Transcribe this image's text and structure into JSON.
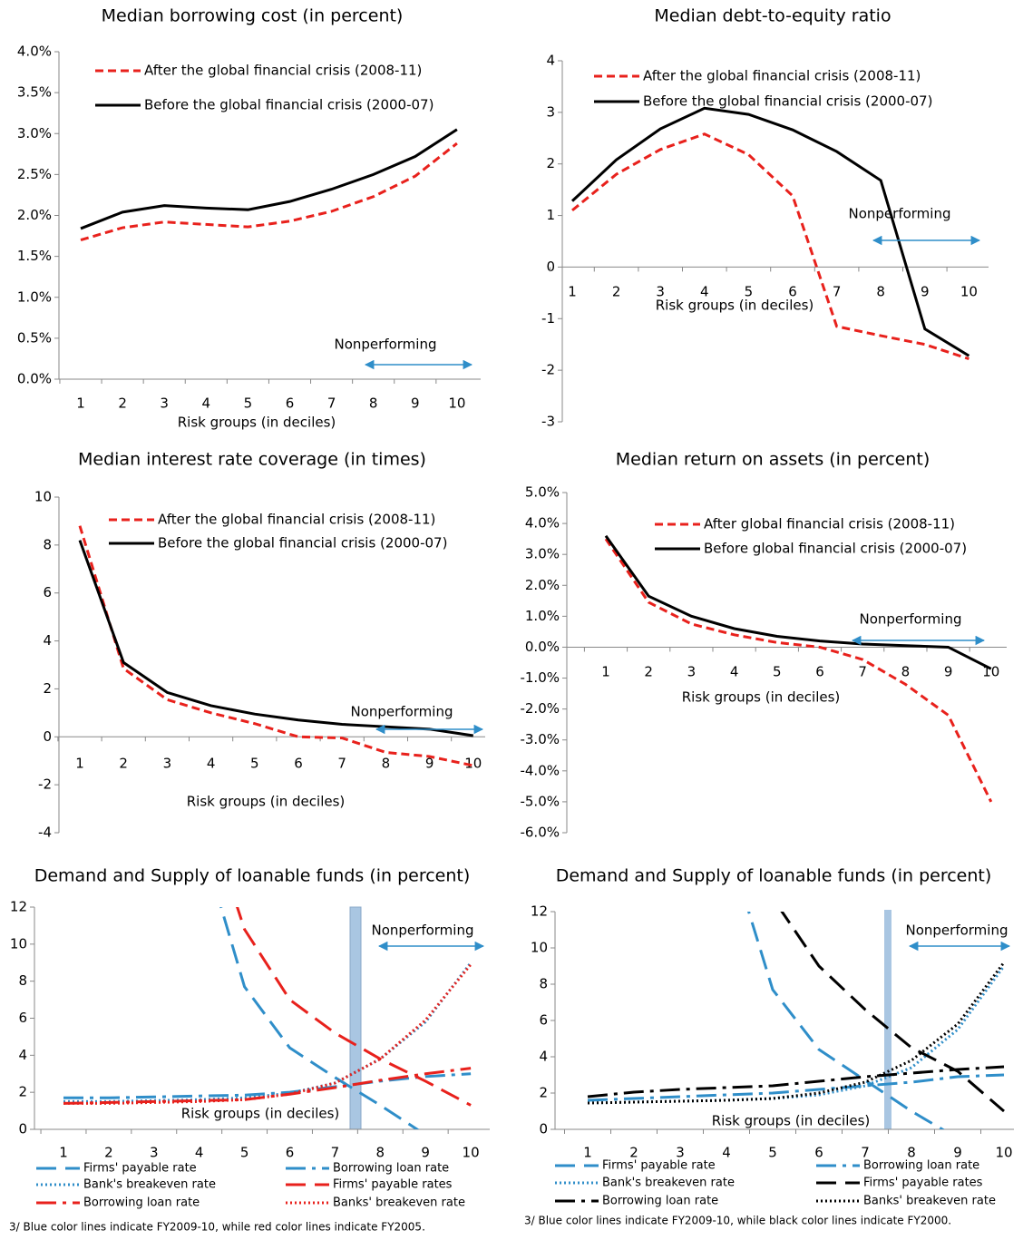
{
  "chart_data": [
    {
      "type": "line",
      "title": "Median borrowing cost (in percent)",
      "x_label": "Risk groups (in deciles)",
      "annotation": "Nonperforming",
      "categories": [
        "1",
        "2",
        "3",
        "4",
        "5",
        "6",
        "7",
        "8",
        "9",
        "10"
      ],
      "ylim": [
        0,
        4
      ],
      "yticks": [
        {
          "value": 0,
          "label": "0.0%"
        },
        {
          "value": 0.5,
          "label": "0.5%"
        },
        {
          "value": 1,
          "label": "1.0%"
        },
        {
          "value": 1.5,
          "label": "1.5%"
        },
        {
          "value": 2,
          "label": "2.0%"
        },
        {
          "value": 2.5,
          "label": "2.5%"
        },
        {
          "value": 3,
          "label": "3.0%"
        },
        {
          "value": 3.5,
          "label": "3.5%"
        },
        {
          "value": 4,
          "label": "4.0%"
        }
      ],
      "series": [
        {
          "name": "After the global financial crisis (2008-11)",
          "color": "#e8211c",
          "dash": "dash",
          "values": [
            1.7,
            1.85,
            1.92,
            1.89,
            1.86,
            1.93,
            2.05,
            2.23,
            2.48,
            2.88
          ]
        },
        {
          "name": "Before the global financial crisis (2000-07)",
          "color": "#000000",
          "dash": "solid",
          "values": [
            1.84,
            2.04,
            2.12,
            2.09,
            2.07,
            2.17,
            2.32,
            2.5,
            2.72,
            3.05
          ]
        }
      ]
    },
    {
      "type": "line",
      "title": "Median debt-to-equity ratio",
      "x_label": "Risk groups (in deciles)",
      "annotation": "Nonperforming",
      "categories": [
        "1",
        "2",
        "3",
        "4",
        "5",
        "6",
        "7",
        "8",
        "9",
        "10"
      ],
      "ylim": [
        -3,
        4
      ],
      "yticks": [
        -3,
        -2,
        -1,
        0,
        1,
        2,
        3,
        4
      ],
      "series": [
        {
          "name": "After the global financial crisis (2008-11)",
          "color": "#e8211c",
          "dash": "dash",
          "values": [
            1.1,
            1.8,
            2.28,
            2.58,
            2.18,
            1.38,
            -1.15,
            -1.33,
            -1.5,
            -1.78
          ]
        },
        {
          "name": "Before the global financial crisis (2000-07)",
          "color": "#000000",
          "dash": "solid",
          "values": [
            1.28,
            2.08,
            2.68,
            3.08,
            2.96,
            2.66,
            2.24,
            1.68,
            -1.2,
            -1.72
          ]
        }
      ]
    },
    {
      "type": "line",
      "title": "Median interest rate coverage (in times)",
      "x_label": "Risk groups (in deciles)",
      "annotation": "Nonperforming",
      "categories": [
        "1",
        "2",
        "3",
        "4",
        "5",
        "6",
        "7",
        "8",
        "9",
        "10"
      ],
      "ylim": [
        -4,
        10
      ],
      "yticks": [
        -4,
        -2,
        0,
        2,
        4,
        6,
        8,
        10
      ],
      "series": [
        {
          "name": "After the global financial crisis (2008-11)",
          "color": "#e8211c",
          "dash": "dash",
          "values": [
            8.8,
            2.85,
            1.55,
            1.0,
            0.55,
            0.0,
            -0.05,
            -0.65,
            -0.82,
            -1.2
          ]
        },
        {
          "name": "Before the global financial crisis (2000-07)",
          "color": "#000000",
          "dash": "solid",
          "values": [
            8.2,
            3.1,
            1.85,
            1.3,
            0.95,
            0.7,
            0.52,
            0.42,
            0.32,
            0.05
          ]
        }
      ]
    },
    {
      "type": "line",
      "title": "Median return on assets (in percent)",
      "x_label": "Risk groups (in deciles)",
      "annotation": "Nonperforming",
      "categories": [
        "1",
        "2",
        "3",
        "4",
        "5",
        "6",
        "7",
        "8",
        "9",
        "10"
      ],
      "ylim": [
        -6,
        5
      ],
      "yticks": [
        {
          "value": -6,
          "label": "-6.0%"
        },
        {
          "value": -5,
          "label": "-5.0%"
        },
        {
          "value": -4,
          "label": "-4.0%"
        },
        {
          "value": -3,
          "label": "-3.0%"
        },
        {
          "value": -2,
          "label": "-2.0%"
        },
        {
          "value": -1,
          "label": "-1.0%"
        },
        {
          "value": 0,
          "label": "0.0%"
        },
        {
          "value": 1,
          "label": "1.0%"
        },
        {
          "value": 2,
          "label": "2.0%"
        },
        {
          "value": 3,
          "label": "3.0%"
        },
        {
          "value": 4,
          "label": "4.0%"
        },
        {
          "value": 5,
          "label": "5.0%"
        }
      ],
      "series": [
        {
          "name": "After global financial crisis (2008-11)",
          "color": "#e8211c",
          "dash": "dash",
          "values": [
            3.5,
            1.45,
            0.75,
            0.4,
            0.15,
            0.0,
            -0.4,
            -1.2,
            -2.2,
            -5.0
          ]
        },
        {
          "name": "Before global financial crisis (2000-07)",
          "color": "#000000",
          "dash": "solid",
          "values": [
            3.6,
            1.65,
            1.0,
            0.6,
            0.35,
            0.2,
            0.1,
            0.05,
            0.0,
            -0.7
          ]
        }
      ]
    },
    {
      "type": "line",
      "title": "Demand and Supply of loanable funds (in percent)",
      "x_label": "Risk groups (in deciles)",
      "annotation": "Nonperforming",
      "note": "3/ Blue color lines indicate FY2009-10, while red color lines indicate FY2005.",
      "categories": [
        "1",
        "2",
        "3",
        "4",
        "5",
        "6",
        "7",
        "8",
        "9",
        "10"
      ],
      "ylim": [
        0,
        12
      ],
      "yticks": [
        0,
        2,
        4,
        6,
        8,
        10,
        12
      ],
      "series": [
        {
          "name": "Firms' payable rate",
          "color": "#2f8ec9",
          "dash": "longdash",
          "values": [
            null,
            null,
            null,
            16,
            7.7,
            4.4,
            2.8,
            1.3,
            -0.3,
            -1.5
          ]
        },
        {
          "name": "Borrowing loan rate",
          "color": "#2f8ec9",
          "dash": "dashdot",
          "values": [
            1.7,
            1.7,
            1.75,
            1.8,
            1.85,
            2.0,
            2.3,
            2.6,
            2.85,
            3.0
          ]
        },
        {
          "name": "Bank's breakeven rate",
          "color": "#2f8ec9",
          "dash": "dot",
          "values": [
            1.5,
            1.5,
            1.55,
            1.6,
            1.7,
            1.95,
            2.5,
            3.8,
            5.8,
            9.0
          ]
        },
        {
          "name": "Firms' payable rates",
          "color": "#e8211c",
          "dash": "longdash",
          "values": [
            null,
            null,
            null,
            18.3,
            10.8,
            7.0,
            5.2,
            3.8,
            2.6,
            1.3
          ]
        },
        {
          "name": "Borrowing loan rate",
          "color": "#e8211c",
          "dash": "dashdot",
          "values": [
            1.4,
            1.45,
            1.5,
            1.55,
            1.6,
            1.9,
            2.25,
            2.65,
            3.0,
            3.3
          ]
        },
        {
          "name": "Banks' breakeven rate",
          "color": "#e8211c",
          "dash": "dot",
          "values": [
            1.4,
            1.4,
            1.45,
            1.5,
            1.6,
            1.9,
            2.5,
            3.8,
            5.9,
            8.9
          ]
        }
      ]
    },
    {
      "type": "line",
      "title": "Demand and Supply of loanable funds (in percent)",
      "x_label": "Risk groups (in deciles)",
      "annotation": "Nonperforming",
      "note": "3/ Blue color lines indicate FY2009-10, while black color lines indicate  FY2000.",
      "categories": [
        "1",
        "2",
        "3",
        "4",
        "5",
        "6",
        "7",
        "8",
        "9",
        "10"
      ],
      "ylim": [
        0,
        12
      ],
      "yticks": [
        0,
        2,
        4,
        6,
        8,
        10,
        12
      ],
      "series": [
        {
          "name": "Firms' payable rate",
          "color": "#2f8ec9",
          "dash": "longdash",
          "values": [
            null,
            null,
            null,
            16,
            7.7,
            4.4,
            2.7,
            1.0,
            -0.5,
            -2.0
          ]
        },
        {
          "name": "Borrowing loan rate",
          "color": "#2f8ec9",
          "dash": "dashdot",
          "values": [
            1.6,
            1.7,
            1.8,
            1.9,
            2.0,
            2.2,
            2.4,
            2.6,
            2.9,
            3.0
          ]
        },
        {
          "name": "Bank's breakeven rate",
          "color": "#2f8ec9",
          "dash": "dot",
          "values": [
            1.45,
            1.5,
            1.55,
            1.6,
            1.7,
            1.9,
            2.4,
            3.4,
            5.5,
            9.0
          ]
        },
        {
          "name": "Firms' payable rates",
          "color": "#000000",
          "dash": "longdash",
          "values": [
            null,
            null,
            null,
            18,
            12.75,
            9.0,
            6.6,
            4.5,
            3.2,
            1.0
          ]
        },
        {
          "name": "Borrowing loan rate",
          "color": "#000000",
          "dash": "dashdot",
          "values": [
            1.8,
            2.05,
            2.2,
            2.3,
            2.4,
            2.65,
            2.9,
            3.1,
            3.3,
            3.45
          ]
        },
        {
          "name": "Banks' breakeven rate",
          "color": "#000000",
          "dash": "dot",
          "values": [
            1.45,
            1.5,
            1.55,
            1.6,
            1.7,
            2.0,
            2.6,
            3.8,
            5.8,
            9.2
          ]
        }
      ]
    }
  ]
}
